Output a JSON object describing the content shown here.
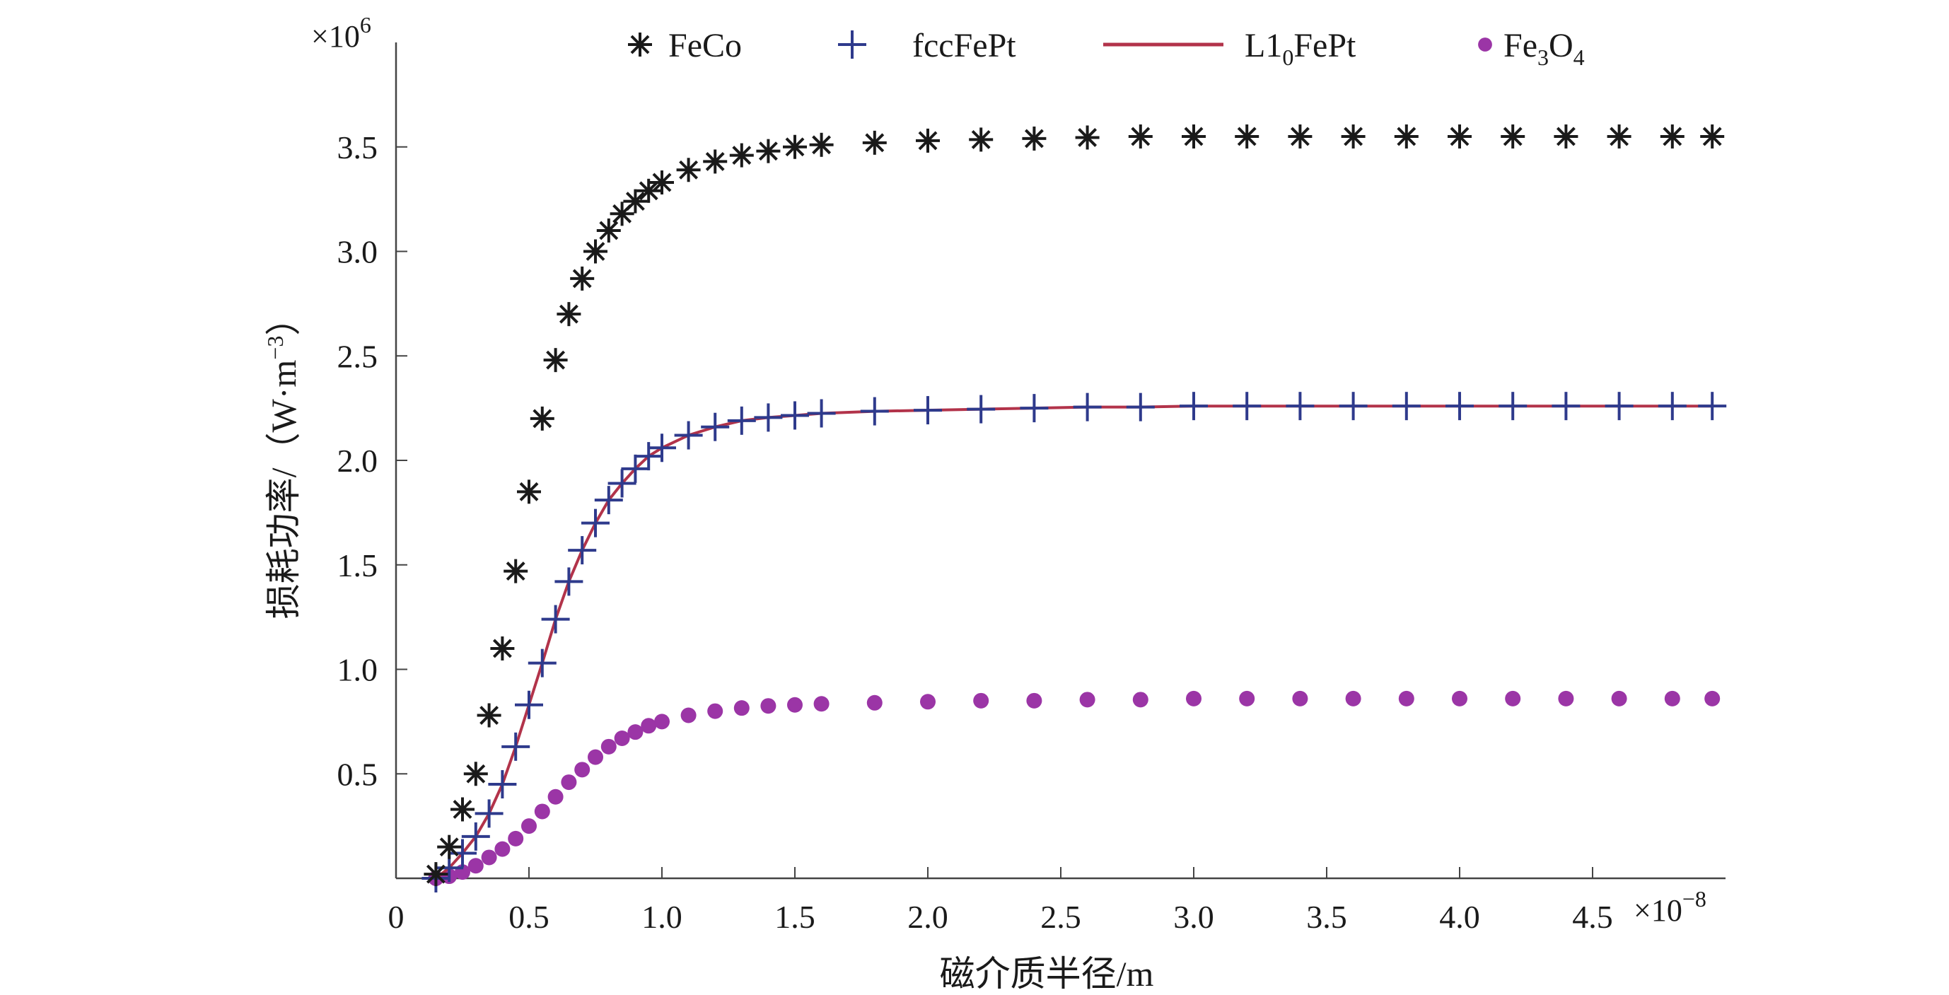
{
  "chart_data": {
    "type": "scatter",
    "title": "",
    "xlabel": "磁介质半径/m",
    "ylabel": "损耗功率/（W·m",
    "ylabel_sup": "−3",
    "ylabel_close": "）",
    "x_multiplier": {
      "base": "×10",
      "exp": "−8"
    },
    "y_multiplier": {
      "base": "×10",
      "exp": "6"
    },
    "xlim": [
      0,
      5.0
    ],
    "ylim": [
      0,
      4.0
    ],
    "x_ticks": [
      0,
      0.5,
      1.0,
      1.5,
      2.0,
      2.5,
      3.0,
      3.5,
      4.0,
      4.5
    ],
    "x_tick_labels": [
      "0",
      "0.5",
      "1.0",
      "1.5",
      "2.0",
      "2.5",
      "3.0",
      "3.5",
      "4.0",
      "4.5"
    ],
    "y_ticks": [
      0.5,
      1.0,
      1.5,
      2.0,
      2.5,
      3.0,
      3.5
    ],
    "y_tick_labels": [
      "0.5",
      "1.0",
      "1.5",
      "2.0",
      "2.5",
      "3.0",
      "3.5"
    ],
    "grid": false,
    "legend_position": "top",
    "x": [
      0.15,
      0.2,
      0.25,
      0.3,
      0.35,
      0.4,
      0.45,
      0.5,
      0.55,
      0.6,
      0.65,
      0.7,
      0.75,
      0.8,
      0.85,
      0.9,
      0.95,
      1.0,
      1.1,
      1.2,
      1.3,
      1.4,
      1.5,
      1.6,
      1.8,
      2.0,
      2.2,
      2.4,
      2.6,
      2.8,
      3.0,
      3.2,
      3.4,
      3.6,
      3.8,
      4.0,
      4.2,
      4.4,
      4.6,
      4.8,
      4.95
    ],
    "series": [
      {
        "name": "FeCo",
        "marker": "asterisk",
        "color": "#1a1a1a",
        "values": [
          0.02,
          0.15,
          0.33,
          0.5,
          0.78,
          1.1,
          1.47,
          1.85,
          2.2,
          2.48,
          2.7,
          2.87,
          3.0,
          3.1,
          3.18,
          3.24,
          3.29,
          3.33,
          3.39,
          3.43,
          3.46,
          3.48,
          3.5,
          3.51,
          3.52,
          3.53,
          3.535,
          3.54,
          3.545,
          3.55,
          3.55,
          3.55,
          3.55,
          3.55,
          3.55,
          3.55,
          3.55,
          3.55,
          3.55,
          3.55,
          3.55
        ]
      },
      {
        "name": "fccFePt",
        "marker": "plus",
        "color": "#2e3a8c",
        "values": [
          0.0,
          0.05,
          0.12,
          0.2,
          0.31,
          0.45,
          0.63,
          0.83,
          1.03,
          1.24,
          1.42,
          1.57,
          1.7,
          1.81,
          1.89,
          1.96,
          2.02,
          2.06,
          2.12,
          2.16,
          2.19,
          2.205,
          2.215,
          2.225,
          2.235,
          2.24,
          2.245,
          2.25,
          2.255,
          2.255,
          2.26,
          2.26,
          2.26,
          2.26,
          2.26,
          2.26,
          2.26,
          2.26,
          2.26,
          2.26,
          2.26
        ]
      },
      {
        "name": "L1",
        "name_sub": "0",
        "name_rest": "FePt",
        "marker": "line",
        "color": "#b2334a",
        "values": [
          0.0,
          0.05,
          0.12,
          0.2,
          0.31,
          0.45,
          0.63,
          0.83,
          1.03,
          1.24,
          1.42,
          1.57,
          1.7,
          1.81,
          1.89,
          1.96,
          2.02,
          2.06,
          2.12,
          2.16,
          2.19,
          2.205,
          2.215,
          2.225,
          2.235,
          2.24,
          2.245,
          2.25,
          2.255,
          2.255,
          2.26,
          2.26,
          2.26,
          2.26,
          2.26,
          2.26,
          2.26,
          2.26,
          2.26,
          2.26,
          2.26
        ]
      },
      {
        "name": "Fe",
        "name_sub": "3",
        "name_rest": "O",
        "name_sub2": "4",
        "marker": "dot",
        "color": "#9b35a6",
        "values": [
          0.0,
          0.01,
          0.03,
          0.06,
          0.1,
          0.14,
          0.19,
          0.25,
          0.32,
          0.39,
          0.46,
          0.52,
          0.58,
          0.63,
          0.67,
          0.7,
          0.73,
          0.75,
          0.78,
          0.8,
          0.815,
          0.825,
          0.83,
          0.835,
          0.84,
          0.845,
          0.85,
          0.85,
          0.855,
          0.855,
          0.86,
          0.86,
          0.86,
          0.86,
          0.86,
          0.86,
          0.86,
          0.86,
          0.86,
          0.86,
          0.86
        ]
      }
    ]
  }
}
